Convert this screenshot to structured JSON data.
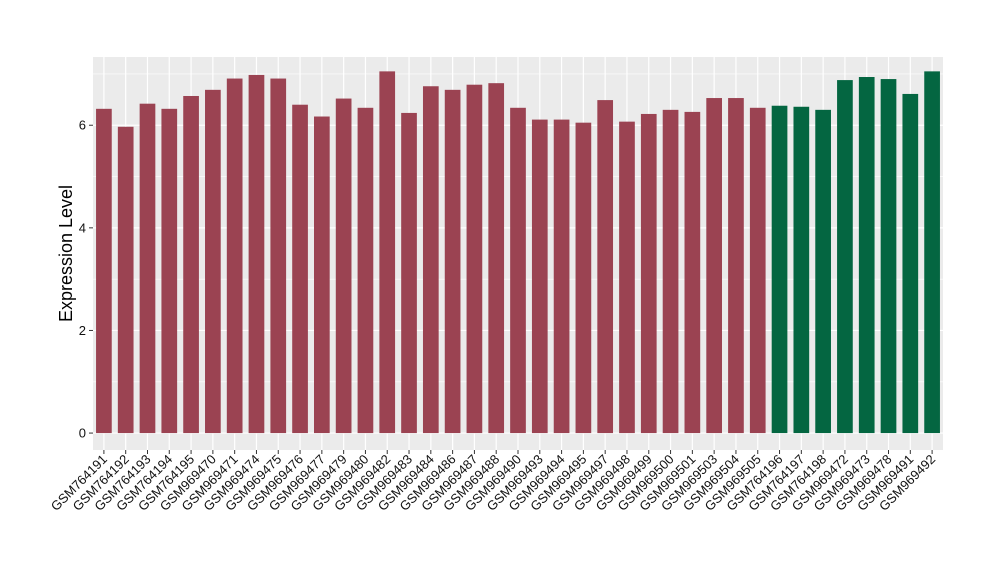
{
  "chart_data": {
    "type": "bar",
    "title": "",
    "xlabel": "",
    "ylabel": "Expression Level",
    "ylim": [
      -0.33,
      7.33
    ],
    "yticks": [
      0,
      2,
      4,
      6
    ],
    "grid": true,
    "categories": [
      "GSM764191",
      "GSM764192",
      "GSM764193",
      "GSM764194",
      "GSM764195",
      "GSM969470",
      "GSM969471",
      "GSM969474",
      "GSM969475",
      "GSM969476",
      "GSM969477",
      "GSM969479",
      "GSM969480",
      "GSM969482",
      "GSM969483",
      "GSM969484",
      "GSM969486",
      "GSM969487",
      "GSM969488",
      "GSM969490",
      "GSM969493",
      "GSM969494",
      "GSM969495",
      "GSM969497",
      "GSM969498",
      "GSM969499",
      "GSM969500",
      "GSM969501",
      "GSM969503",
      "GSM969504",
      "GSM969505",
      "GSM764196",
      "GSM764197",
      "GSM764198",
      "GSM969472",
      "GSM969473",
      "GSM969478",
      "GSM969491",
      "GSM969492"
    ],
    "values": [
      6.32,
      5.97,
      6.42,
      6.32,
      6.57,
      6.69,
      6.91,
      6.98,
      6.91,
      6.4,
      6.17,
      6.52,
      6.34,
      7.05,
      6.24,
      6.76,
      6.69,
      6.79,
      6.82,
      6.34,
      6.11,
      6.11,
      6.05,
      6.49,
      6.07,
      6.22,
      6.3,
      6.26,
      6.53,
      6.53,
      6.34,
      6.38,
      6.36,
      6.3,
      6.88,
      6.94,
      6.9,
      6.61,
      7.05
    ],
    "groups": [
      "a",
      "a",
      "a",
      "a",
      "a",
      "a",
      "a",
      "a",
      "a",
      "a",
      "a",
      "a",
      "a",
      "a",
      "a",
      "a",
      "a",
      "a",
      "a",
      "a",
      "a",
      "a",
      "a",
      "a",
      "a",
      "a",
      "a",
      "a",
      "a",
      "a",
      "a",
      "b",
      "b",
      "b",
      "b",
      "b",
      "b",
      "b",
      "b"
    ],
    "colors": {
      "a": "#9b4352",
      "b": "#046641"
    },
    "panel_background": "#ebebeb",
    "gridline_color": "#ffffff"
  }
}
